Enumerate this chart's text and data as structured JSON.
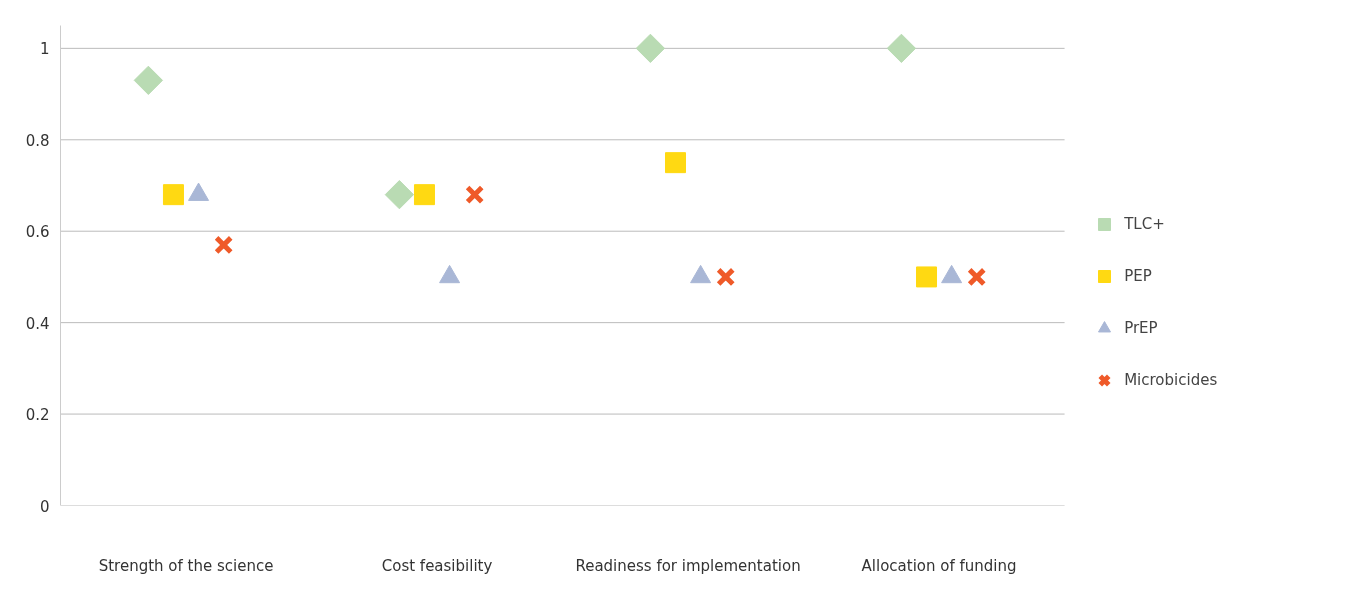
{
  "chart_data": {
    "type": "scatter",
    "categories": [
      "Strength of the science",
      "Cost feasibility",
      "Readiness for implementation",
      "Allocation of funding"
    ],
    "series": [
      {
        "name": "TLC+",
        "color": "#b9dbb3",
        "marker": "diamond",
        "values": [
          0.93,
          0.68,
          1,
          1
        ]
      },
      {
        "name": "PEP",
        "color": "#ffd912",
        "marker": "square",
        "values": [
          0.68,
          0.68,
          0.75,
          0.5
        ]
      },
      {
        "name": "PrEP",
        "color": "#a9b7d6",
        "marker": "triangle",
        "values": [
          0.68,
          0.5,
          0.5,
          0.5
        ]
      },
      {
        "name": "Microbicides",
        "color": "#ef5a29",
        "marker": "cross",
        "values": [
          0.57,
          0.68,
          0.5,
          0.5
        ]
      }
    ],
    "ylim": [
      0,
      1.05
    ],
    "yticks": [
      0,
      0.2,
      0.4,
      0.6,
      0.8,
      1
    ],
    "grid": "y",
    "legend": "right"
  }
}
